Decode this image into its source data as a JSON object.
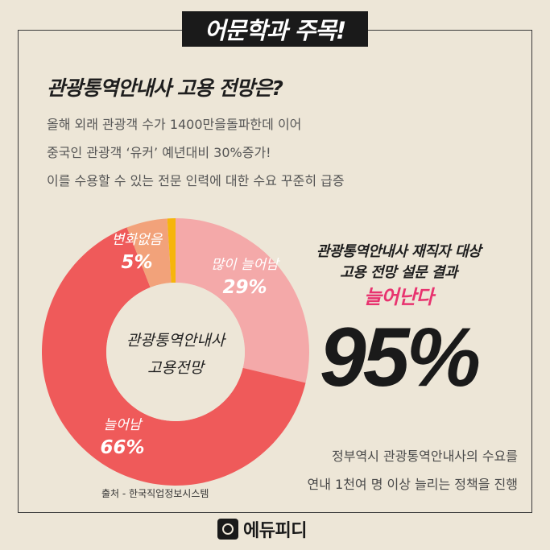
{
  "header": {
    "badge": "어문학과 주목!"
  },
  "headline": "관광통역안내사 고용 전망은?",
  "intro_lines": [
    "올해 외래 관광객 수가 1400만을돌파한데 이어",
    "중국인 관광객 ‘유커’ 예년대비 30%증가!",
    "이를 수용할 수 있는 전문 인력에 대한 수요 꾸준히 급증"
  ],
  "chart_data": {
    "type": "pie",
    "donut": true,
    "center_label": [
      "관광통역안내사",
      "고용전망"
    ],
    "start_angle_deg": 0,
    "slices": [
      {
        "name": "많이 늘어남",
        "value": 29,
        "label": "29%",
        "color": "#f4a9a9"
      },
      {
        "name": "늘어남",
        "value": 66,
        "label": "66%",
        "color": "#ef5a5a"
      },
      {
        "name": "변화없음",
        "value": 5,
        "label": "5%",
        "color": "#f2a27a"
      },
      {
        "name": "",
        "value": 1,
        "label": "",
        "color": "#f6b50c"
      }
    ]
  },
  "survey": {
    "line1": "관광통역안내사 재직자 대상",
    "line2": "고용 전망 설문 결과",
    "accent": "늘어난다",
    "percent": "95%"
  },
  "policy_lines": [
    "정부역시 관광통역안내사의 수요를",
    "연내 1천여 명 이상 늘리는 정책을 진행"
  ],
  "source": "출처 - 한국직업정보시스템",
  "brand": {
    "name": "에듀피디",
    "logo_icon": "edupd-logo-icon"
  }
}
